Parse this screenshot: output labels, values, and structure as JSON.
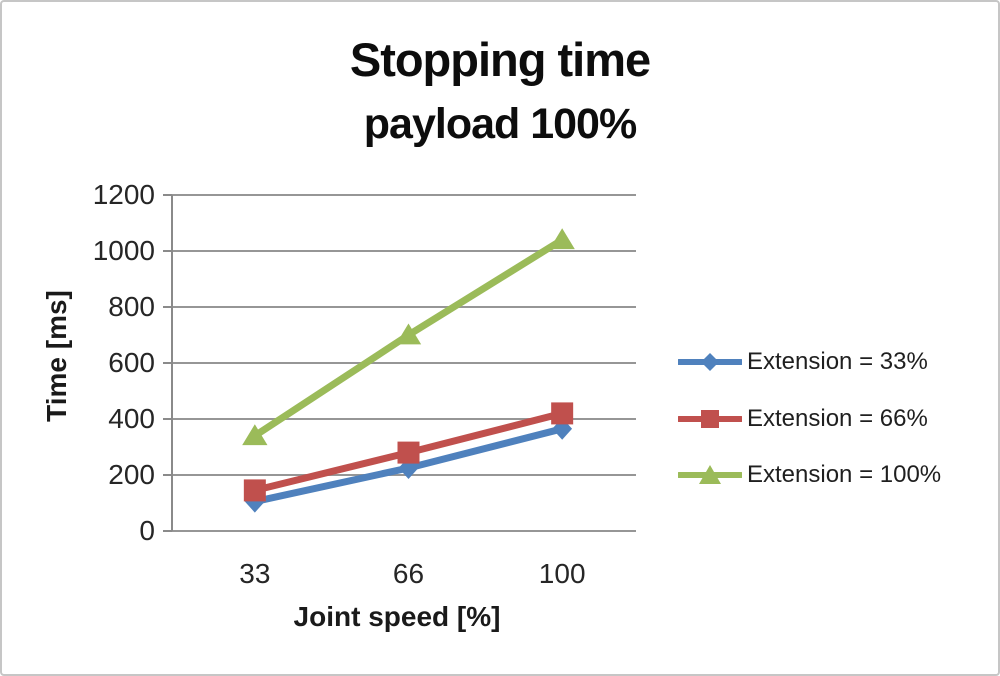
{
  "chart": {
    "title": "Stopping time",
    "subtitle": "payload 100%",
    "y_axis_title": "Time [ms]",
    "x_axis_title": "Joint speed [%]"
  },
  "chart_data": {
    "type": "line",
    "title": "Stopping time",
    "subtitle": "payload 100%",
    "xlabel": "Joint speed [%]",
    "ylabel": "Time [ms]",
    "categories": [
      "33",
      "66",
      "100"
    ],
    "series": [
      {
        "name": "Extension = 33%",
        "values": [
          105,
          225,
          365
        ],
        "color": "#4F81BD",
        "marker": "diamond"
      },
      {
        "name": "Extension = 66%",
        "values": [
          145,
          280,
          420
        ],
        "color": "#C0504D",
        "marker": "square"
      },
      {
        "name": "Extension = 100%",
        "values": [
          340,
          700,
          1040
        ],
        "color": "#9BBB59",
        "marker": "triangle"
      }
    ],
    "ylim": [
      0,
      1200
    ],
    "ytick_step": 200,
    "grid": "horizontal-only",
    "legend_position": "right",
    "gridline_color": "#969696",
    "axis_color": "#8a8a8a"
  }
}
